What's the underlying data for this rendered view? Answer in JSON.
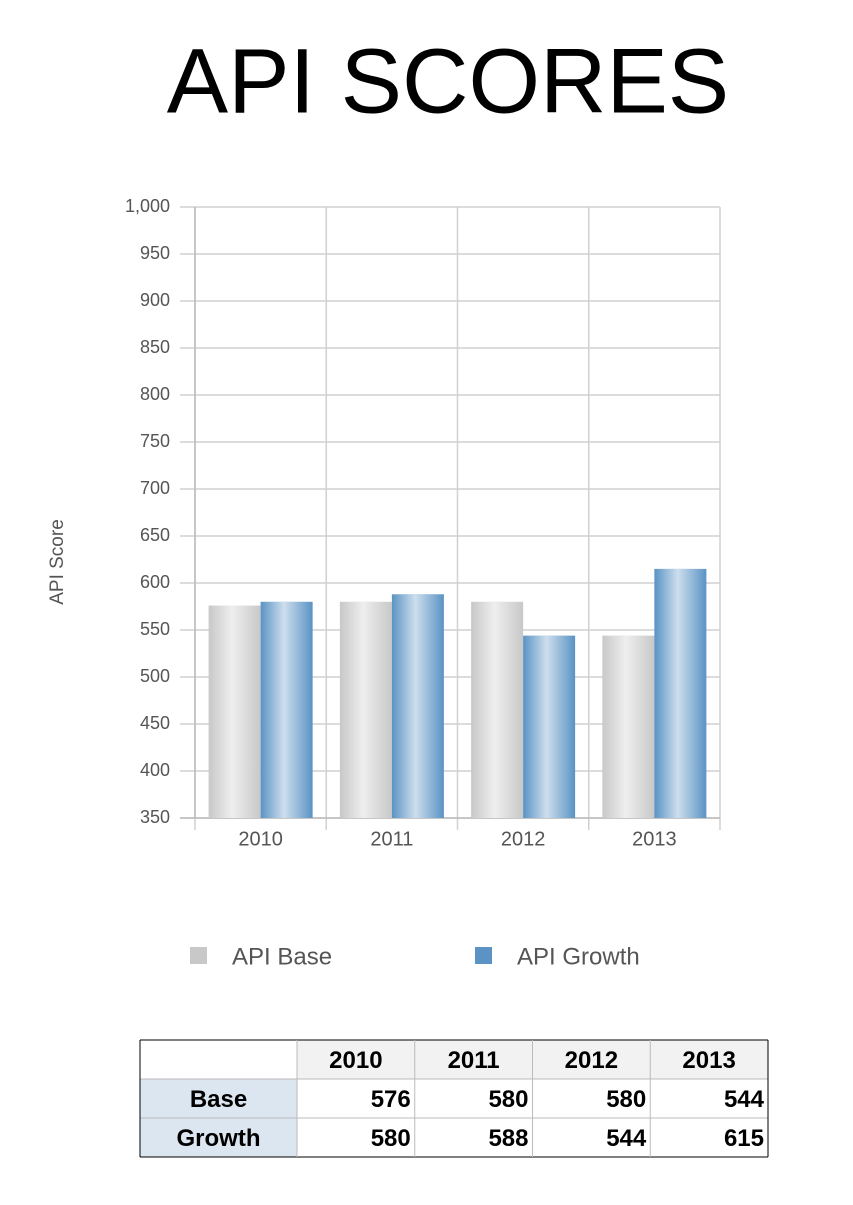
{
  "chart_data": {
    "type": "bar",
    "title": "API SCORES",
    "y_label": "API Score",
    "categories": [
      "2010",
      "2011",
      "2012",
      "2013"
    ],
    "series": [
      {
        "name": "API Base",
        "color": "#c8c8c8",
        "values": [
          576,
          580,
          580,
          544
        ]
      },
      {
        "name": "API Growth",
        "color": "#5a93c4",
        "values": [
          580,
          588,
          544,
          615
        ]
      }
    ],
    "ylim": [
      350,
      1000
    ],
    "yticks": [
      350,
      400,
      450,
      500,
      550,
      600,
      650,
      700,
      750,
      800,
      850,
      900,
      950,
      {
        "value": 1000,
        "label": "1,000"
      }
    ],
    "grid": true
  },
  "table": {
    "row_labels": [
      "Base",
      "Growth"
    ]
  }
}
